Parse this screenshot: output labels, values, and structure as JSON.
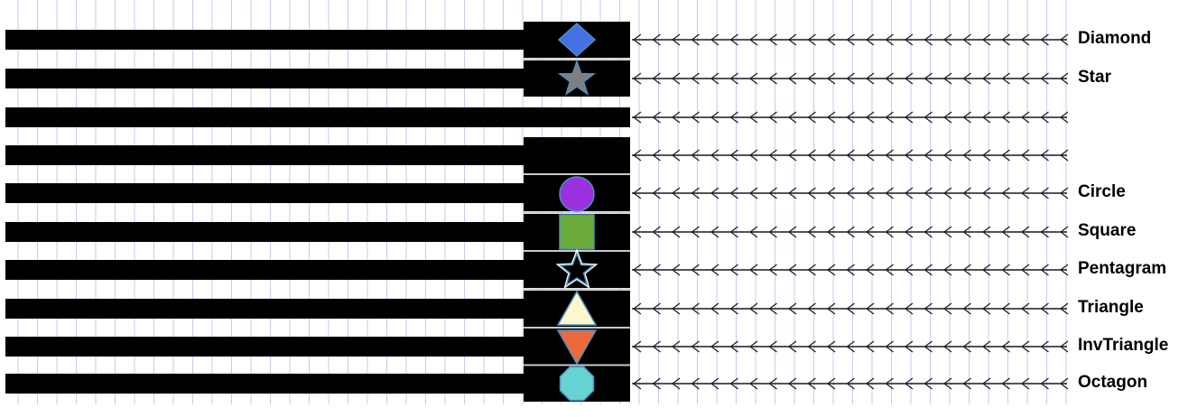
{
  "colors": {
    "bar": "#000000",
    "grid_line": "#c9c9ef",
    "arrow": "#1a1a1a",
    "divider": "#c8c8c8",
    "marker_outline": "#4f8fbf"
  },
  "rows": [
    {
      "label": "Diamond",
      "marker": "diamond",
      "fill": "#4472e4",
      "block": true
    },
    {
      "label": "Star",
      "marker": "star",
      "fill": "#7f7f7f",
      "block": true
    },
    {
      "label": "",
      "marker": "none",
      "fill": "",
      "block": false
    },
    {
      "label": "",
      "marker": "none",
      "fill": "",
      "block": true
    },
    {
      "label": "Circle",
      "marker": "circle",
      "fill": "#9b30e0",
      "block": true
    },
    {
      "label": "Square",
      "marker": "square",
      "fill": "#6aab3a",
      "block": true
    },
    {
      "label": "Pentagram",
      "marker": "pentagram",
      "fill": "none",
      "block": true
    },
    {
      "label": "Triangle",
      "marker": "triangle",
      "fill": "#fdf6cf",
      "block": true
    },
    {
      "label": "InvTriangle",
      "marker": "invtriangle",
      "fill": "#ec6a3a",
      "block": true
    },
    {
      "label": "Octagon",
      "marker": "octagon",
      "fill": "#66d4d2",
      "block": true
    }
  ]
}
